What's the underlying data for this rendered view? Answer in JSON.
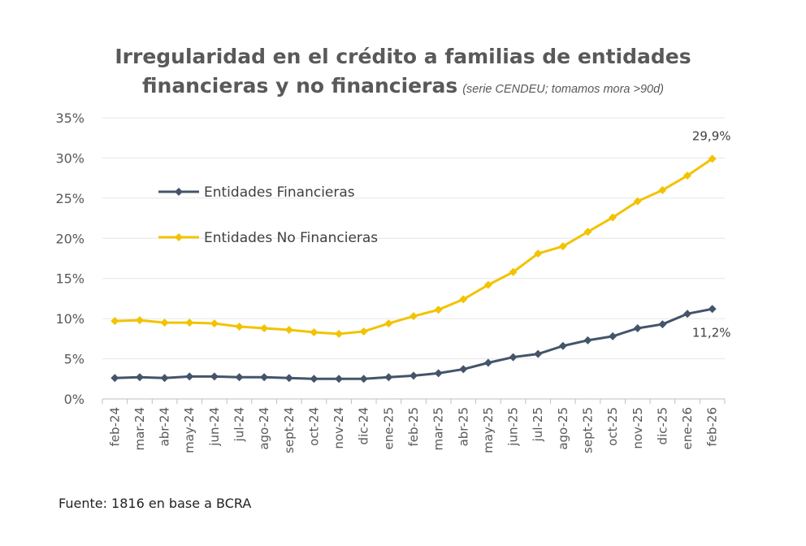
{
  "chart_data": {
    "type": "line",
    "title_line1": "Irregularidad en el crédito a familias de entidades",
    "title_line2": "financieras y no financieras",
    "title_note": "(serie CENDEU; tomamos mora >90d)",
    "categories": [
      "feb-24",
      "mar-24",
      "abr-24",
      "may-24",
      "jun-24",
      "jul-24",
      "ago-24",
      "sept-24",
      "oct-24",
      "nov-24",
      "dic-24",
      "ene-25",
      "feb-25",
      "mar-25",
      "abr-25",
      "may-25",
      "jun-25",
      "jul-25",
      "ago-25",
      "sept-25",
      "oct-25",
      "nov-25",
      "dic-25",
      "ene-26",
      "feb-26"
    ],
    "y_ticks": [
      "0%",
      "5%",
      "10%",
      "15%",
      "20%",
      "25%",
      "30%",
      "35%"
    ],
    "ylim": [
      0,
      35
    ],
    "grid": true,
    "legend_position": "upper-left inside plot",
    "series": [
      {
        "name": "Entidades Financieras",
        "color": "#44546A",
        "values": [
          2.6,
          2.7,
          2.6,
          2.8,
          2.8,
          2.7,
          2.7,
          2.6,
          2.5,
          2.5,
          2.5,
          2.7,
          2.9,
          3.2,
          3.7,
          4.5,
          5.2,
          5.6,
          6.6,
          7.3,
          7.8,
          8.8,
          9.3,
          10.6,
          11.2
        ],
        "end_label": "11,2%"
      },
      {
        "name": "Entidades No Financieras",
        "color": "#F2C300",
        "values": [
          9.7,
          9.8,
          9.5,
          9.5,
          9.4,
          9.0,
          8.8,
          8.6,
          8.3,
          8.1,
          8.4,
          9.4,
          10.3,
          11.1,
          12.4,
          14.2,
          15.8,
          18.1,
          19.0,
          20.8,
          22.6,
          24.6,
          26.0,
          27.8,
          29.9
        ],
        "end_label": "29,9%"
      }
    ]
  },
  "source": "Fuente: 1816 en base a BCRA"
}
